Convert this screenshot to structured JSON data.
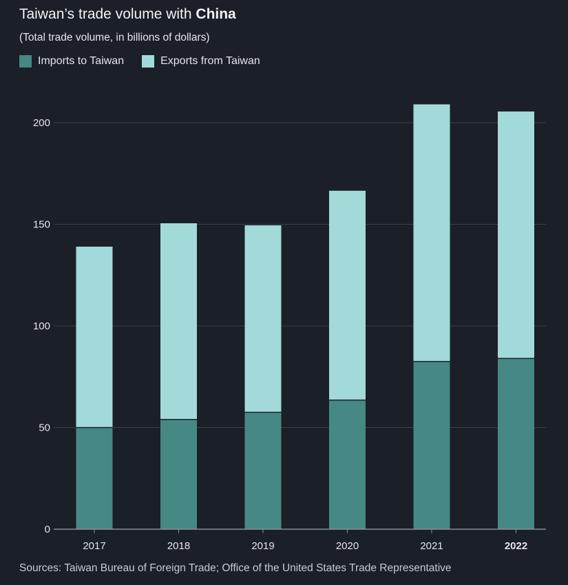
{
  "title": {
    "prefix": "Taiwan’s trade volume with ",
    "emphasis": "China"
  },
  "subtitle": "(Total trade volume, in billions of dollars)",
  "source": "Sources: Taiwan Bureau of Foreign Trade; Office of the United States Trade Representative",
  "colors": {
    "background": "#1b1f27",
    "imports": "#468884",
    "exports": "#a1dad9",
    "grid": "#3b4048",
    "axis": "#8a8f96"
  },
  "chart_data": {
    "type": "bar",
    "stacked": true,
    "categories": [
      "2017",
      "2018",
      "2019",
      "2020",
      "2021",
      "2022"
    ],
    "highlighted_category": "2022",
    "series": [
      {
        "name": "Imports to Taiwan",
        "values": [
          50,
          54,
          57.5,
          63.5,
          82.5,
          84
        ]
      },
      {
        "name": "Exports from Taiwan",
        "values": [
          89,
          96.5,
          92,
          103,
          126.5,
          121.5
        ]
      }
    ],
    "totals": [
      139,
      150.5,
      149.5,
      166.5,
      209,
      205.5
    ],
    "yticks": [
      "0",
      "50",
      "100",
      "150",
      "200"
    ],
    "ylim": [
      0,
      200
    ],
    "grid": true,
    "legend_position": "top-left"
  }
}
